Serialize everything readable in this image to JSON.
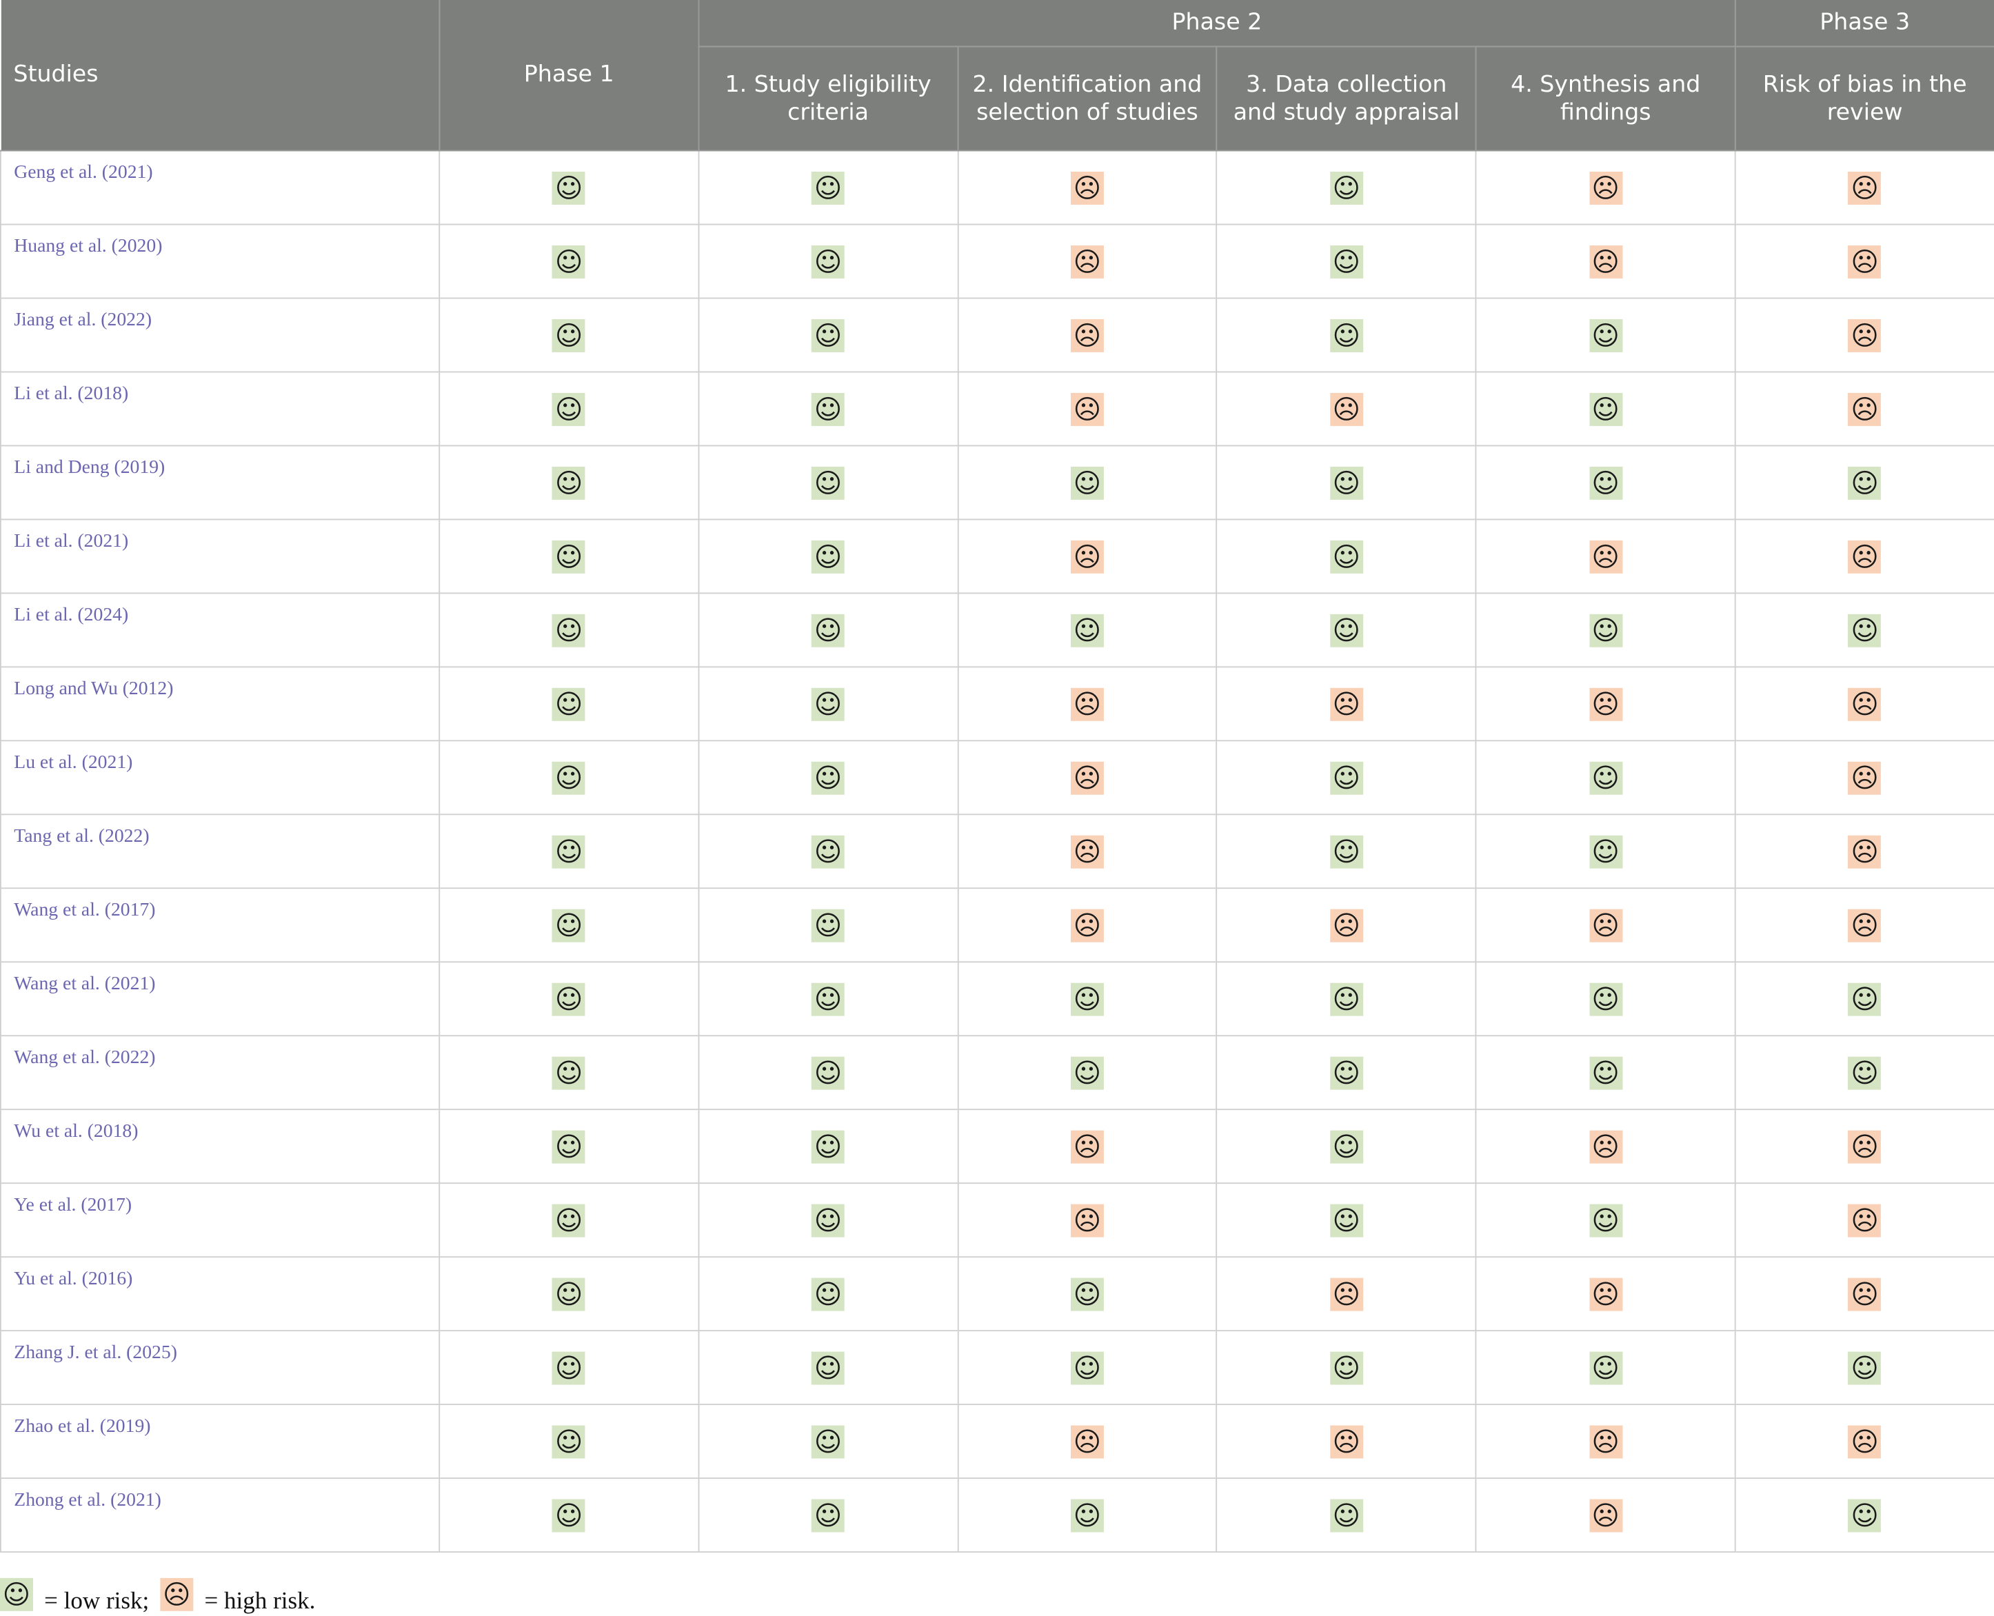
{
  "header": {
    "studies": "Studies",
    "phase1": "Phase 1",
    "phase2": "Phase 2",
    "phase3": "Phase 3",
    "phase2_sub": [
      "1. Study eligibility criteria",
      "2. Identification and selection of studies",
      "3. Data collection and study appraisal",
      "4. Synthesis and findings"
    ],
    "phase3_sub": "Risk of bias in the review"
  },
  "icons": {
    "low": "☺",
    "high": "☹"
  },
  "colors": {
    "header_bg": "#7d7f7d",
    "low_bg": "#d5e4c3",
    "high_bg": "#f9d1b6",
    "study_link": "#6b66b0"
  },
  "rows": [
    {
      "study": "Geng et al. (2021)",
      "ratings": [
        "low",
        "low",
        "high",
        "low",
        "high",
        "high"
      ]
    },
    {
      "study": "Huang et al. (2020)",
      "ratings": [
        "low",
        "low",
        "high",
        "low",
        "high",
        "high"
      ]
    },
    {
      "study": "Jiang et al. (2022)",
      "ratings": [
        "low",
        "low",
        "high",
        "low",
        "low",
        "high"
      ]
    },
    {
      "study": "Li et al. (2018)",
      "ratings": [
        "low",
        "low",
        "high",
        "high",
        "low",
        "high"
      ]
    },
    {
      "study": "Li and Deng (2019)",
      "ratings": [
        "low",
        "low",
        "low",
        "low",
        "low",
        "low"
      ]
    },
    {
      "study": "Li et al. (2021)",
      "ratings": [
        "low",
        "low",
        "high",
        "low",
        "high",
        "high"
      ]
    },
    {
      "study": "Li et al. (2024)",
      "ratings": [
        "low",
        "low",
        "low",
        "low",
        "low",
        "low"
      ]
    },
    {
      "study": "Long and Wu (2012)",
      "ratings": [
        "low",
        "low",
        "high",
        "high",
        "high",
        "high"
      ]
    },
    {
      "study": "Lu et al. (2021)",
      "ratings": [
        "low",
        "low",
        "high",
        "low",
        "low",
        "high"
      ]
    },
    {
      "study": "Tang et al. (2022)",
      "ratings": [
        "low",
        "low",
        "high",
        "low",
        "low",
        "high"
      ]
    },
    {
      "study": "Wang et al. (2017)",
      "ratings": [
        "low",
        "low",
        "high",
        "high",
        "high",
        "high"
      ]
    },
    {
      "study": "Wang et al. (2021)",
      "ratings": [
        "low",
        "low",
        "low",
        "low",
        "low",
        "low"
      ]
    },
    {
      "study": "Wang et al. (2022)",
      "ratings": [
        "low",
        "low",
        "low",
        "low",
        "low",
        "low"
      ]
    },
    {
      "study": "Wu et al. (2018)",
      "ratings": [
        "low",
        "low",
        "high",
        "low",
        "high",
        "high"
      ]
    },
    {
      "study": "Ye et al. (2017)",
      "ratings": [
        "low",
        "low",
        "high",
        "low",
        "low",
        "high"
      ]
    },
    {
      "study": "Yu et al. (2016)",
      "ratings": [
        "low",
        "low",
        "low",
        "high",
        "high",
        "high"
      ]
    },
    {
      "study": "Zhang J. et al. (2025)",
      "ratings": [
        "low",
        "low",
        "low",
        "low",
        "low",
        "low"
      ]
    },
    {
      "study": "Zhao et al. (2019)",
      "ratings": [
        "low",
        "low",
        "high",
        "high",
        "high",
        "high"
      ]
    },
    {
      "study": "Zhong et al. (2021)",
      "ratings": [
        "low",
        "low",
        "low",
        "low",
        "high",
        "low"
      ]
    }
  ],
  "legend": {
    "low_text": "= low risk;",
    "high_text": "= high risk."
  }
}
